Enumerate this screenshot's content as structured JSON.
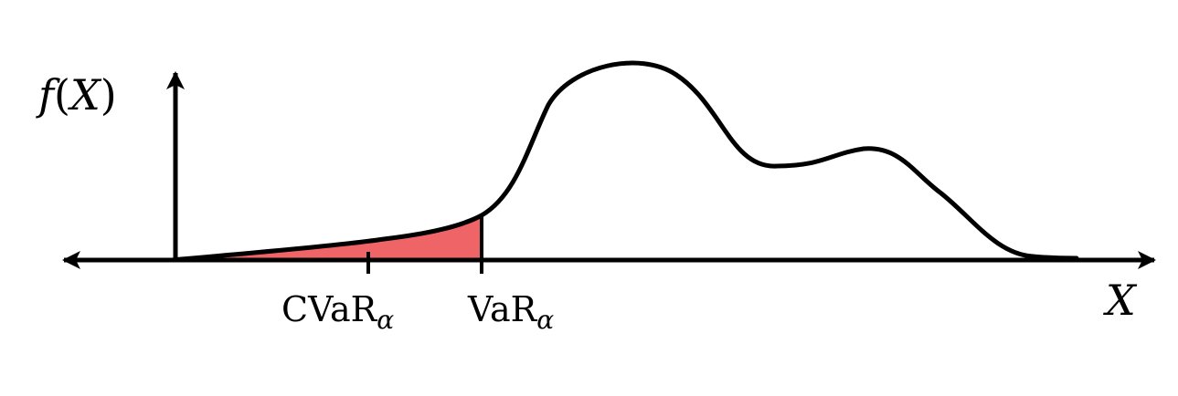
{
  "labels": {
    "y_axis": {
      "f": "f",
      "open": "(",
      "var": "X",
      "close": ")"
    },
    "x_axis": "X",
    "cvar": {
      "main": "CVaR",
      "sub": "α"
    },
    "var": {
      "main": "VaR",
      "sub": "α"
    }
  },
  "colors": {
    "curve": "#000000",
    "axes": "#000000",
    "tail_fill": "#ef6466"
  }
}
